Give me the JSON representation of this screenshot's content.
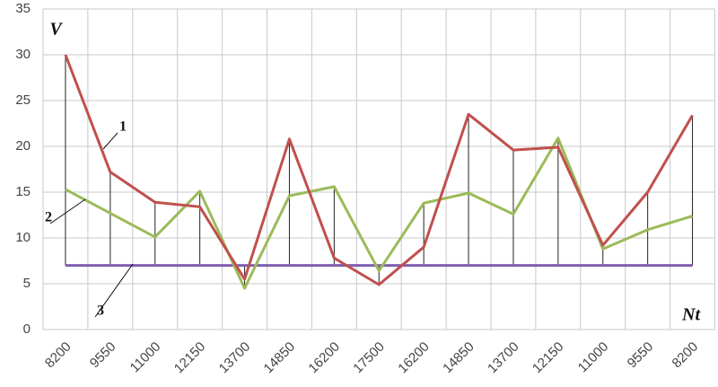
{
  "chart_data": {
    "type": "line",
    "categories": [
      "8200",
      "9550",
      "11000",
      "12150",
      "13700",
      "14850",
      "16200",
      "17500",
      "16200",
      "14850",
      "13700",
      "12150",
      "11000",
      "9550",
      "8200"
    ],
    "series": [
      {
        "name": "1",
        "color": "#c0504d",
        "values": [
          30,
          17.2,
          13.9,
          13.4,
          5.5,
          20.8,
          7.8,
          4.9,
          9,
          23.5,
          19.6,
          19.9,
          9.2,
          15,
          23.4
        ]
      },
      {
        "name": "2",
        "color": "#9bbb59",
        "values": [
          15.3,
          12.7,
          10.1,
          15.1,
          4.5,
          14.6,
          15.6,
          6.4,
          13.8,
          14.9,
          12.6,
          20.9,
          8.8,
          10.9,
          12.4
        ]
      },
      {
        "name": "3",
        "color": "#7f5fb0",
        "values": [
          7,
          7,
          7,
          7,
          7,
          7,
          7,
          7,
          7,
          7,
          7,
          7,
          7,
          7,
          7
        ]
      }
    ],
    "y_label": "V",
    "x_label": "Nt",
    "ylim": [
      0,
      35
    ],
    "yticks": [
      0,
      5,
      10,
      15,
      20,
      25,
      30,
      35
    ],
    "grid": true,
    "hi_lo_lines": true
  }
}
